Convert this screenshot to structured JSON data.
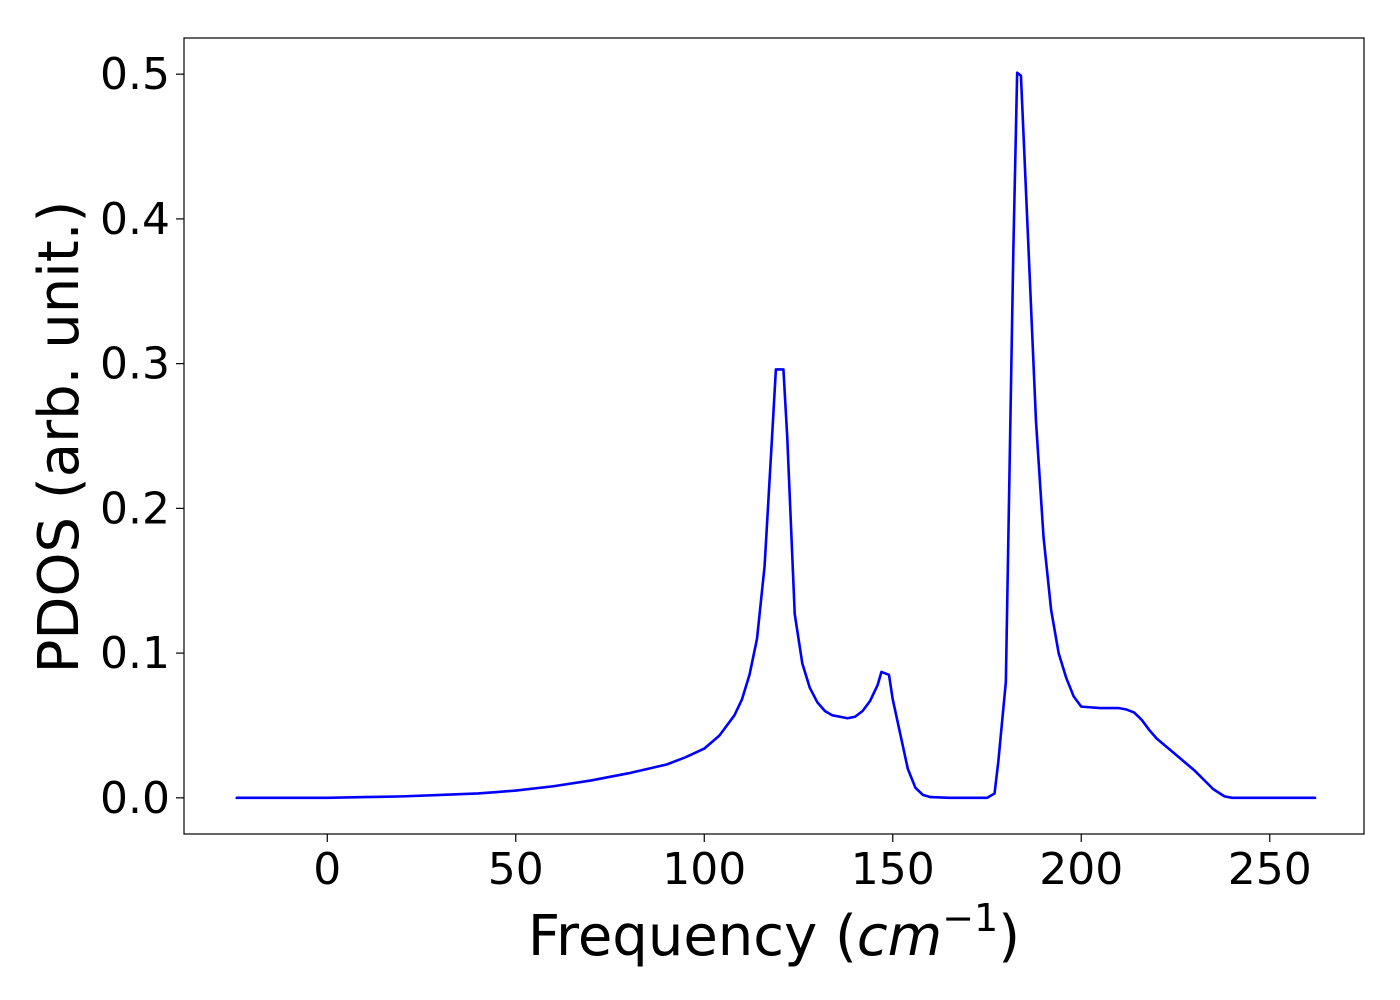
{
  "chart_data": {
    "type": "line",
    "xlabel_main": "Frequency (",
    "xlabel_unit": "cm",
    "xlabel_exponent": "−1",
    "xlabel_close": ")",
    "ylabel": "PDOS (arb. unit.)",
    "xlim": [
      -38,
      275
    ],
    "ylim": [
      -0.025,
      0.525
    ],
    "xticks": [
      0,
      50,
      100,
      150,
      200,
      250
    ],
    "xtick_labels": [
      "0",
      "50",
      "100",
      "150",
      "200",
      "250"
    ],
    "yticks": [
      0.0,
      0.1,
      0.2,
      0.3,
      0.4,
      0.5
    ],
    "ytick_labels": [
      "0.0",
      "0.1",
      "0.2",
      "0.3",
      "0.4",
      "0.5"
    ],
    "grid": false,
    "series": [
      {
        "color": "#0000ff",
        "x": [
          -24,
          0,
          10,
          20,
          30,
          40,
          45,
          50,
          60,
          70,
          80,
          90,
          95,
          100,
          104,
          108,
          110,
          112,
          114,
          116,
          118,
          119,
          121,
          122,
          124,
          126,
          128,
          130,
          132,
          134,
          136,
          138,
          140,
          142,
          144,
          146,
          147,
          149,
          150,
          152,
          154,
          156,
          158,
          160,
          165,
          170,
          175,
          177,
          178,
          180,
          182,
          183,
          184,
          186,
          188,
          190,
          192,
          194,
          196,
          198,
          200,
          205,
          210,
          212,
          214,
          216,
          218,
          220,
          225,
          230,
          235,
          238,
          240,
          245,
          250,
          262
        ],
        "y": [
          0.0,
          0.0,
          0.0005,
          0.001,
          0.002,
          0.003,
          0.004,
          0.005,
          0.008,
          0.012,
          0.017,
          0.023,
          0.028,
          0.034,
          0.043,
          0.057,
          0.068,
          0.085,
          0.11,
          0.16,
          0.25,
          0.296,
          0.296,
          0.25,
          0.127,
          0.093,
          0.076,
          0.066,
          0.06,
          0.057,
          0.056,
          0.055,
          0.056,
          0.06,
          0.067,
          0.078,
          0.087,
          0.085,
          0.068,
          0.044,
          0.02,
          0.007,
          0.002,
          0.0005,
          0.0,
          0.0,
          0.0,
          0.003,
          0.025,
          0.08,
          0.38,
          0.501,
          0.499,
          0.38,
          0.26,
          0.18,
          0.13,
          0.1,
          0.083,
          0.07,
          0.063,
          0.062,
          0.062,
          0.061,
          0.059,
          0.054,
          0.047,
          0.041,
          0.03,
          0.019,
          0.006,
          0.001,
          0.0,
          0.0,
          0.0,
          0.0
        ]
      }
    ]
  }
}
